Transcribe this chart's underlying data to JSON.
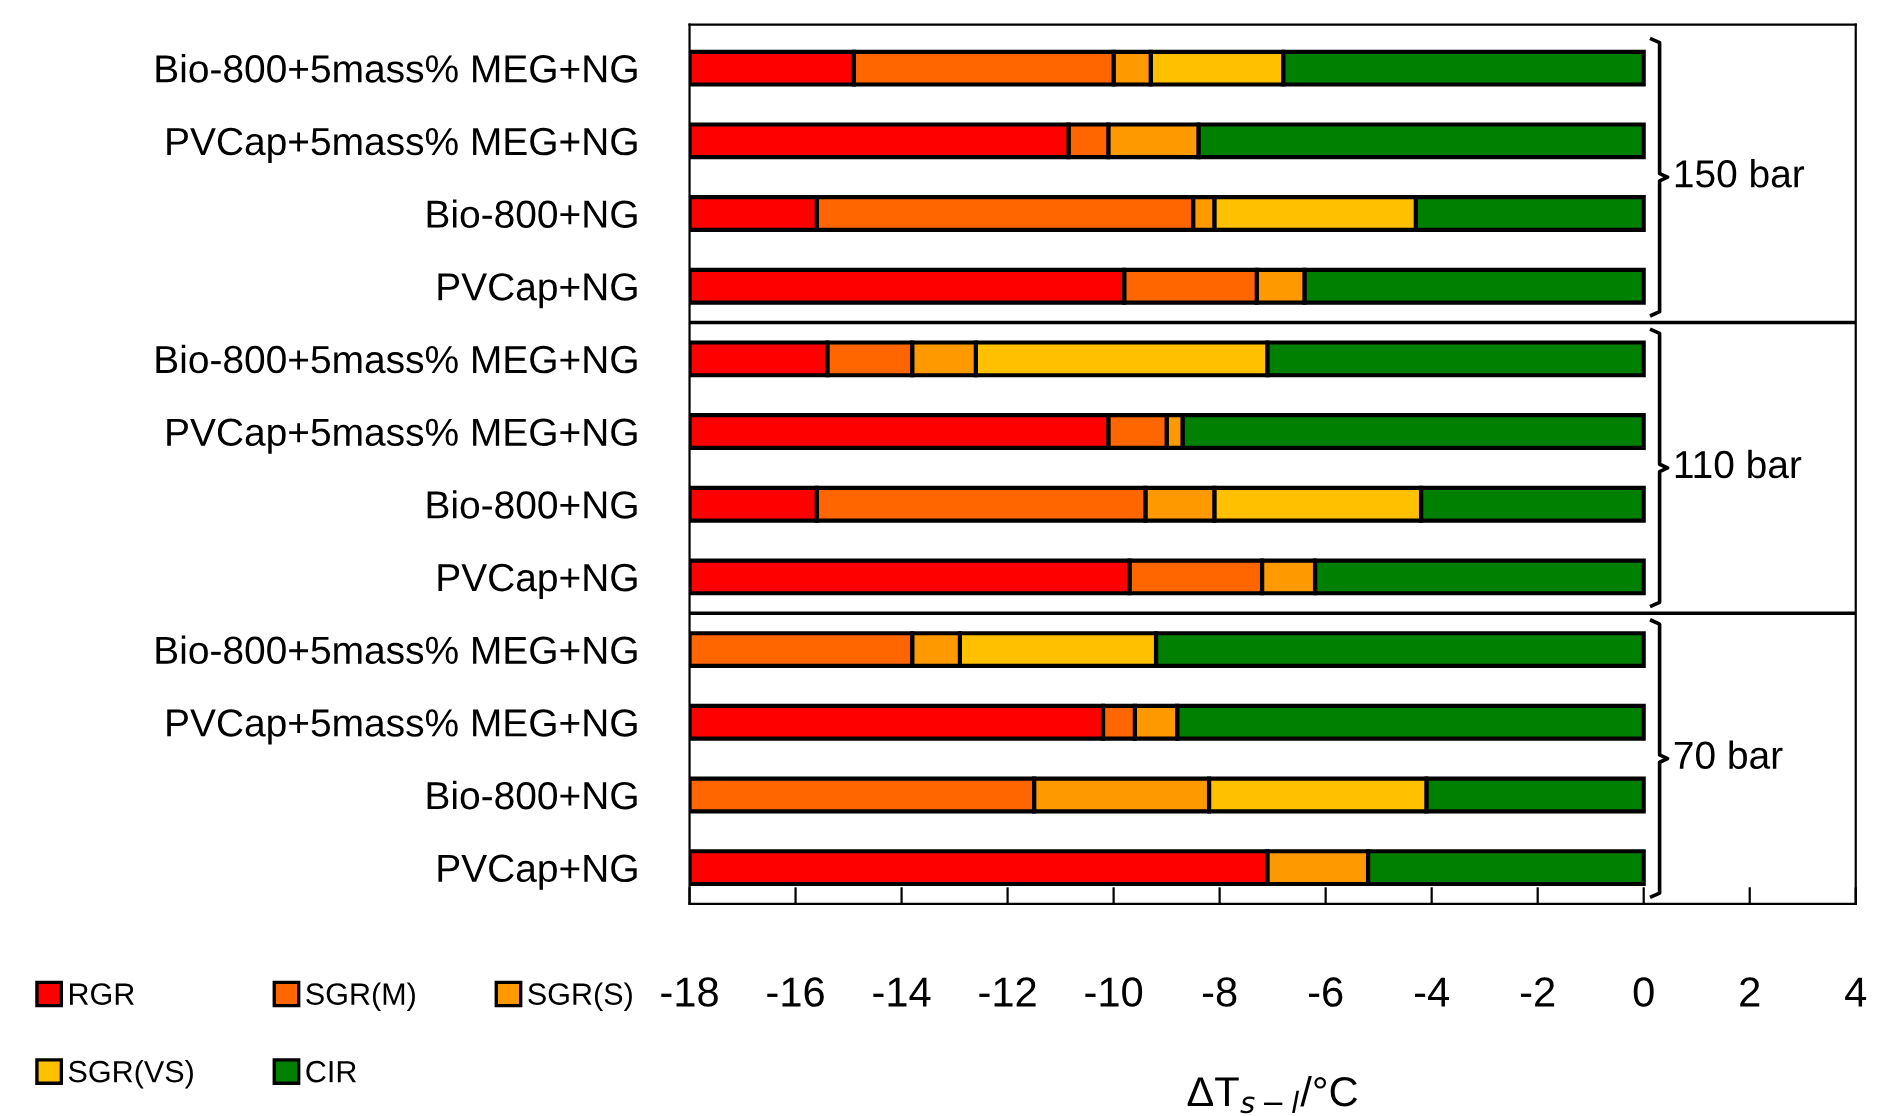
{
  "chart_data": {
    "type": "bar",
    "orientation": "horizontal",
    "stacked": true,
    "categories": [
      "Bio-800+5mass% MEG+NG",
      "PVCap+5mass% MEG+NG",
      "Bio-800+NG",
      "PVCap+NG",
      "Bio-800+5mass% MEG+NG",
      "PVCap+5mass% MEG+NG",
      "Bio-800+NG",
      "PVCap+NG",
      "Bio-800+5mass% MEG+NG",
      "PVCap+5mass% MEG+NG",
      "Bio-800+NG",
      "PVCap+NG"
    ],
    "series": [
      {
        "name": "CIR",
        "color": "#008000",
        "values": [
          -6.8,
          -8.4,
          -4.3,
          -6.4,
          -7.1,
          -8.7,
          -4.2,
          -6.2,
          -9.2,
          -8.8,
          -4.1,
          -5.2
        ]
      },
      {
        "name": "SGR(VS)",
        "color": "#ffc000",
        "values": [
          -2.5,
          null,
          -3.8,
          null,
          -5.5,
          null,
          -3.9,
          null,
          -3.7,
          null,
          -4.1,
          null
        ]
      },
      {
        "name": "SGR(S)",
        "color": "#ff9900",
        "values": [
          -0.7,
          -1.7,
          -0.4,
          -0.9,
          -1.2,
          -0.3,
          -1.3,
          -1.0,
          -0.9,
          -0.8,
          -3.3,
          -1.9
        ]
      },
      {
        "name": "SGR(M)",
        "color": "#ff6600",
        "values": [
          -4.9,
          -0.75,
          -7.1,
          -2.5,
          -1.6,
          -1.1,
          -6.2,
          -2.5,
          -4.2,
          -0.6,
          -6.5,
          null
        ]
      },
      {
        "name": "RGR",
        "color": "#ff0000",
        "values": [
          -3.1,
          -7.15,
          -2.4,
          -8.2,
          -2.6,
          -7.9,
          -2.4,
          -8.3,
          null,
          -7.8,
          null,
          -10.9
        ]
      }
    ],
    "xlim": [
      -18,
      4
    ],
    "xticks": [
      -18,
      -16,
      -14,
      -12,
      -10,
      -8,
      -6,
      -4,
      -2,
      0,
      2,
      4
    ],
    "xlabel": "ΔT$_{s−l}$/°C",
    "annotations": [
      "150 bar",
      "110 bar",
      "70 bar"
    ],
    "legend": "bottom left",
    "grid": false
  }
}
